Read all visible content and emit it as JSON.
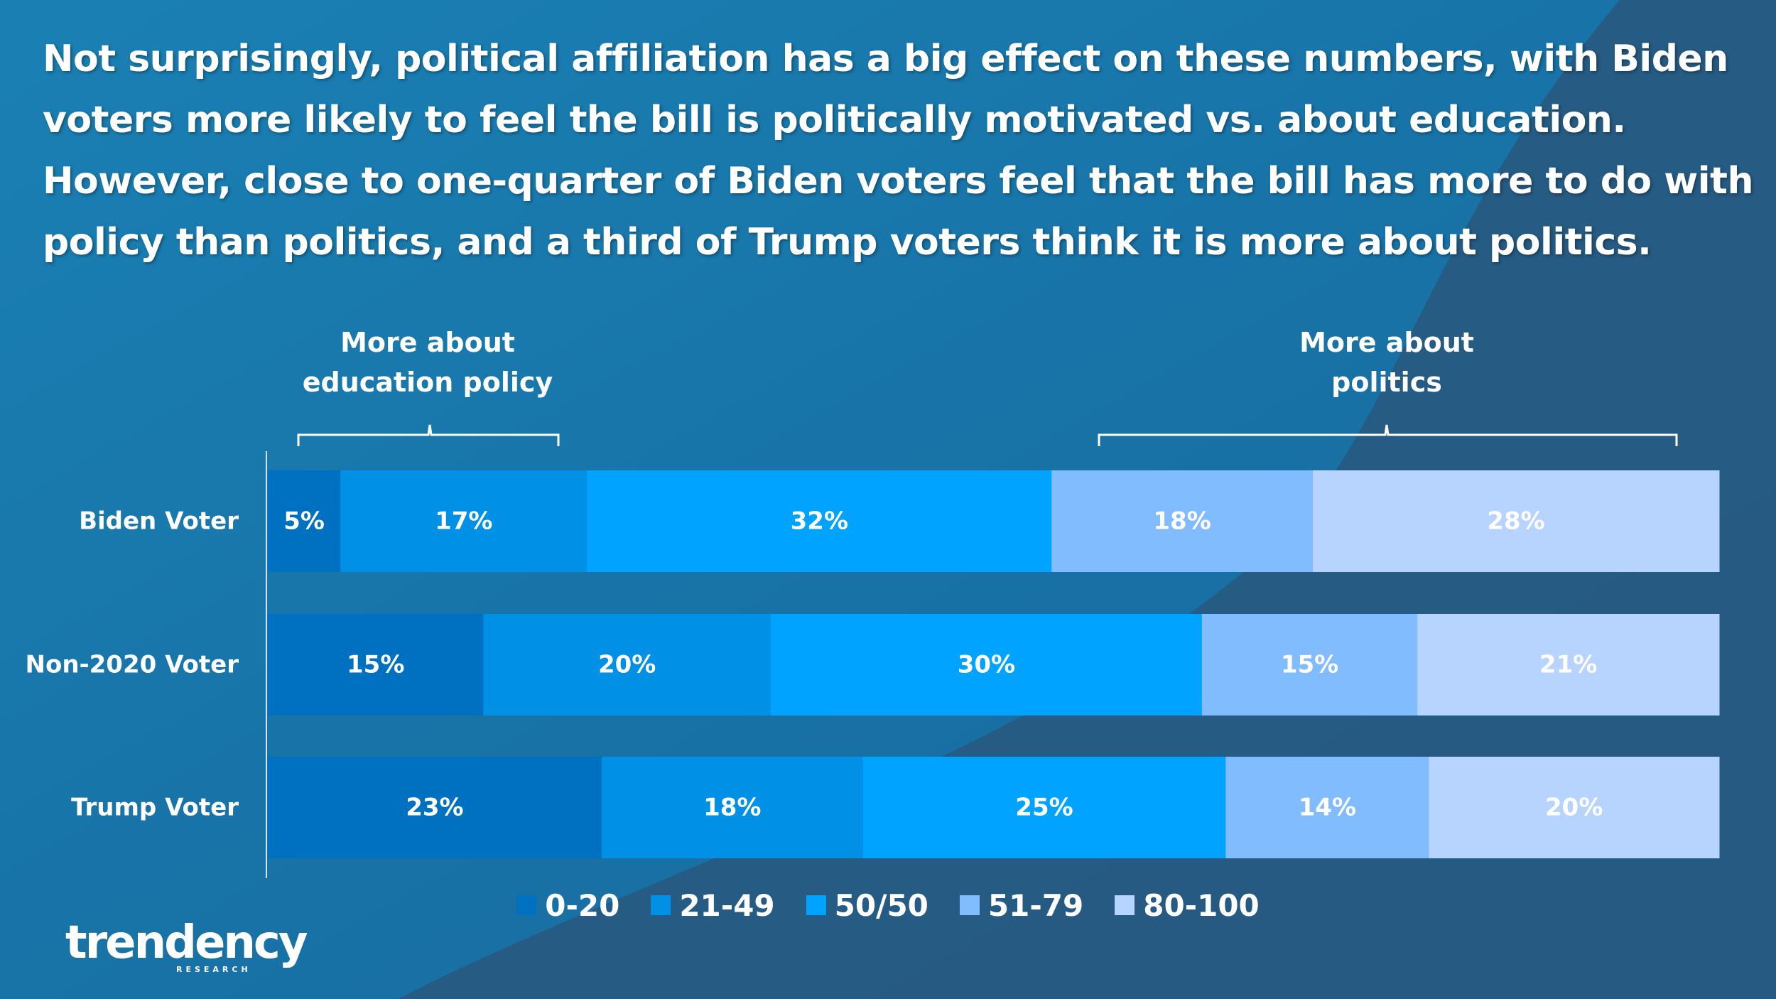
{
  "headline": "Not surprisingly, political affiliation has a big effect on these numbers, with Biden voters more likely to feel the bill is politically motivated vs. about education. However, close to one-quarter of Biden voters feel that the bill has more to do with policy than politics, and a third of Trump voters think it is more about politics.",
  "group_labels": {
    "left": "More about education policy",
    "right": "More about politics"
  },
  "logo": {
    "word": "trendency",
    "sub": "RESEARCH"
  },
  "colors": {
    "0-20": "#0070c0",
    "21-49": "#0090e6",
    "50/50": "#00a3ff",
    "51-79": "#80bcff",
    "80-100": "#b6d4ff"
  },
  "chart_data": {
    "type": "bar",
    "orientation": "horizontal",
    "stacked": true,
    "percent_stacked": true,
    "categories": [
      "Biden Voter",
      "Non-2020 Voter",
      "Trump Voter"
    ],
    "series": [
      {
        "name": "0-20",
        "values": [
          5,
          15,
          23
        ]
      },
      {
        "name": "21-49",
        "values": [
          17,
          20,
          18
        ]
      },
      {
        "name": "50/50",
        "values": [
          32,
          30,
          25
        ]
      },
      {
        "name": "51-79",
        "values": [
          18,
          15,
          14
        ]
      },
      {
        "name": "80-100",
        "values": [
          28,
          21,
          20
        ]
      }
    ],
    "data_labels": true,
    "legend": "bottom",
    "grid": false
  }
}
